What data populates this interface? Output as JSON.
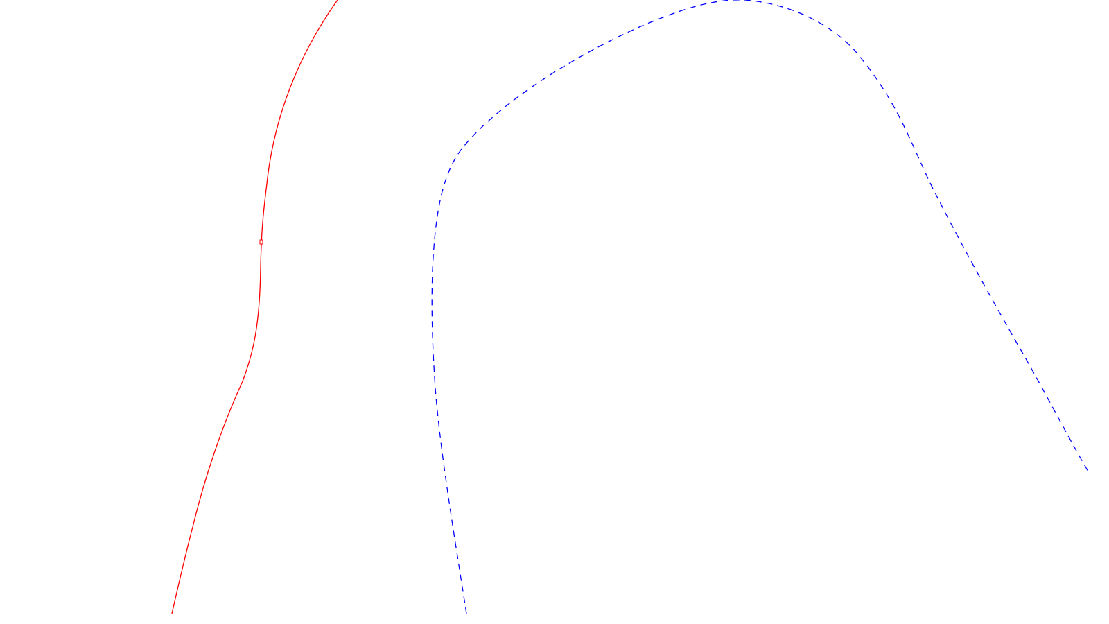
{
  "canvas": {
    "background": "#ffffff"
  },
  "curves": [
    {
      "id": "red-solid",
      "stroke": "#ff0000",
      "style": "solid"
    },
    {
      "id": "blue-dashed",
      "stroke": "#0000ff",
      "style": "dashed"
    }
  ]
}
